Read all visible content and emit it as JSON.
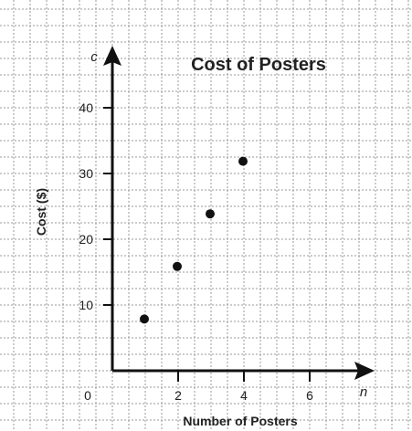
{
  "chart_data": {
    "type": "scatter",
    "title": "Cost of Posters",
    "xlabel": "Number of Posters",
    "ylabel": "Cost ($)",
    "x_variable": "n",
    "y_variable": "c",
    "origin_label": "0",
    "xlim": [
      0,
      7.5
    ],
    "ylim": [
      0,
      50
    ],
    "x_ticks": [
      2,
      4,
      6
    ],
    "y_ticks": [
      10,
      20,
      30,
      40
    ],
    "grid": true,
    "series": [
      {
        "x": [
          1,
          2,
          3,
          4
        ],
        "y": [
          8,
          16,
          24,
          32
        ]
      }
    ]
  }
}
